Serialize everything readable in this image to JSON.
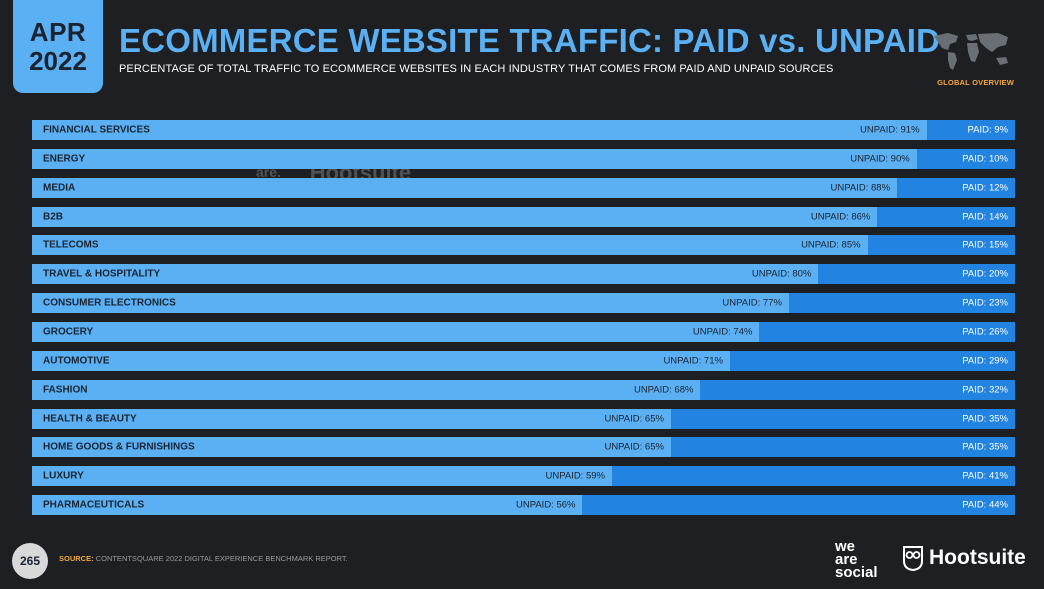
{
  "header": {
    "month": "APR",
    "year": "2022",
    "title": "ECOMMERCE WEBSITE TRAFFIC: PAID vs. UNPAID",
    "subtitle": "PERCENTAGE OF TOTAL TRAFFIC TO ECOMMERCE WEBSITES IN EACH INDUSTRY THAT COMES FROM PAID AND UNPAID SOURCES",
    "global_label": "GLOBAL OVERVIEW",
    "map_icon": "world-map-icon"
  },
  "watermark": {
    "brand_a": "we are social",
    "brand_b": "Hootsuite"
  },
  "colors": {
    "unpaid": "#5ab0f3",
    "paid": "#2284e0",
    "background": "#1d1f22",
    "accent": "#f2a93b"
  },
  "chart_data": {
    "type": "bar",
    "orientation": "horizontal",
    "stacked": true,
    "categories": [
      "FINANCIAL SERVICES",
      "ENERGY",
      "MEDIA",
      "B2B",
      "TELECOMS",
      "TRAVEL & HOSPITALITY",
      "CONSUMER ELECTRONICS",
      "GROCERY",
      "AUTOMOTIVE",
      "FASHION",
      "HEALTH & BEAUTY",
      "HOME GOODS & FURNISHINGS",
      "LUXURY",
      "PHARMACEUTICALS"
    ],
    "series": [
      {
        "name": "UNPAID",
        "values": [
          91,
          90,
          88,
          86,
          85,
          80,
          77,
          74,
          71,
          68,
          65,
          65,
          59,
          56
        ],
        "labels": [
          "UNPAID: 91%",
          "UNPAID: 90%",
          "UNPAID: 88%",
          "UNPAID: 86%",
          "UNPAID: 85%",
          "UNPAID: 80%",
          "UNPAID: 77%",
          "UNPAID: 74%",
          "UNPAID: 71%",
          "UNPAID: 68%",
          "UNPAID: 65%",
          "UNPAID: 65%",
          "UNPAID: 59%",
          "UNPAID: 56%"
        ]
      },
      {
        "name": "PAID",
        "values": [
          9,
          10,
          12,
          14,
          15,
          20,
          23,
          26,
          29,
          32,
          35,
          35,
          41,
          44
        ],
        "labels": [
          "PAID: 9%",
          "PAID: 10%",
          "PAID: 12%",
          "PAID: 14%",
          "PAID: 15%",
          "PAID: 20%",
          "PAID: 23%",
          "PAID: 26%",
          "PAID: 29%",
          "PAID: 32%",
          "PAID: 35%",
          "PAID: 35%",
          "PAID: 41%",
          "PAID: 44%"
        ]
      }
    ],
    "xlim": [
      0,
      100
    ]
  },
  "footer": {
    "page_number": "265",
    "source_label": "SOURCE:",
    "source_text": "CONTENTSQUARE 2022 DIGITAL EXPERIENCE BENCHMARK REPORT.",
    "logo_was": "we are social",
    "logo_hs": "Hootsuite"
  }
}
